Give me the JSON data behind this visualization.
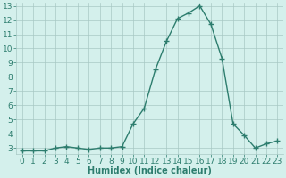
{
  "xlabel": "Humidex (Indice chaleur)",
  "ylabel": "",
  "x": [
    0,
    1,
    2,
    3,
    4,
    5,
    6,
    7,
    8,
    9,
    10,
    11,
    12,
    13,
    14,
    15,
    16,
    17,
    18,
    19,
    20,
    21,
    22,
    23
  ],
  "y": [
    2.8,
    2.8,
    2.8,
    3.0,
    3.1,
    3.0,
    2.9,
    3.0,
    3.0,
    3.1,
    4.7,
    5.8,
    8.5,
    10.5,
    12.1,
    12.5,
    13.0,
    11.7,
    9.3,
    4.7,
    3.9,
    3.0,
    3.3,
    3.5
  ],
  "line_color": "#2d7d6e",
  "marker": "+",
  "marker_size": 4,
  "line_width": 1.0,
  "background_color": "#d4f0ec",
  "grid_color": "#a8c8c4",
  "ylim": [
    2.6,
    13.2
  ],
  "xlim": [
    -0.5,
    23.5
  ],
  "yticks": [
    3,
    4,
    5,
    6,
    7,
    8,
    9,
    10,
    11,
    12,
    13
  ],
  "xticks": [
    0,
    1,
    2,
    3,
    4,
    5,
    6,
    7,
    8,
    9,
    10,
    11,
    12,
    13,
    14,
    15,
    16,
    17,
    18,
    19,
    20,
    21,
    22,
    23
  ],
  "xlabel_fontsize": 7,
  "tick_fontsize": 6.5,
  "tick_color": "#2d7d6e"
}
